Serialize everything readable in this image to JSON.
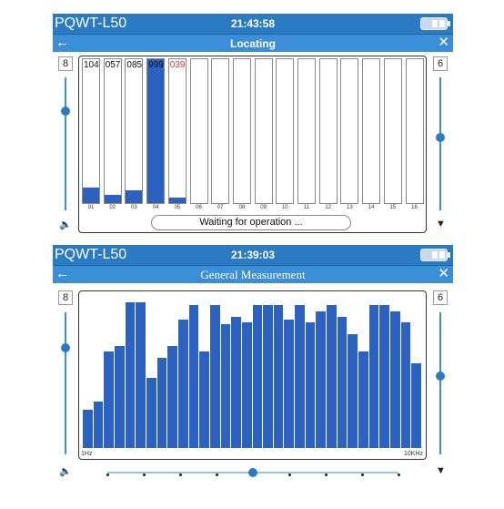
{
  "panel1": {
    "device": "PQWT-L50",
    "time": "21:43:58",
    "title": "Locating",
    "left_gain": "8",
    "right_gain": "6",
    "status_message": "Waiting for operation ...",
    "channels": [
      {
        "label": "01",
        "reading": "104",
        "level": 0.11,
        "reading_color": "#111111"
      },
      {
        "label": "02",
        "reading": "057",
        "level": 0.06,
        "reading_color": "#111111"
      },
      {
        "label": "03",
        "reading": "085",
        "level": 0.09,
        "reading_color": "#111111"
      },
      {
        "label": "04",
        "reading": "999",
        "level": 1.0,
        "reading_color": "#111111"
      },
      {
        "label": "05",
        "reading": "039",
        "level": 0.04,
        "reading_color": "#e03030"
      },
      {
        "label": "06",
        "reading": "",
        "level": 0
      },
      {
        "label": "07",
        "reading": "",
        "level": 0
      },
      {
        "label": "08",
        "reading": "",
        "level": 0
      },
      {
        "label": "09",
        "reading": "",
        "level": 0
      },
      {
        "label": "10",
        "reading": "",
        "level": 0
      },
      {
        "label": "11",
        "reading": "",
        "level": 0
      },
      {
        "label": "12",
        "reading": "",
        "level": 0
      },
      {
        "label": "13",
        "reading": "",
        "level": 0
      },
      {
        "label": "14",
        "reading": "",
        "level": 0
      },
      {
        "label": "15",
        "reading": "",
        "level": 0
      },
      {
        "label": "16",
        "reading": "",
        "level": 0
      }
    ],
    "left_slider_level": 0.75,
    "right_slider_level": 0.55
  },
  "panel2": {
    "device": "PQWT-L50",
    "time": "21:39:03",
    "title": "General Measurement",
    "left_gain": "8",
    "right_gain": "6",
    "x_min_label": "1Hz",
    "x_max_label": "10KHz",
    "spectrum_levels": [
      0.26,
      0.32,
      0.66,
      0.7,
      1.0,
      1.0,
      0.48,
      0.62,
      0.7,
      0.88,
      0.98,
      0.66,
      0.98,
      0.85,
      0.9,
      0.86,
      0.98,
      0.98,
      0.98,
      0.88,
      0.98,
      0.86,
      0.94,
      0.98,
      0.9,
      0.78,
      0.66,
      0.98,
      0.98,
      0.94,
      0.86,
      0.58
    ],
    "left_slider_level": 0.75,
    "right_slider_level": 0.55,
    "bottom_slider_level": 0.5,
    "bottom_slider_steps": 9
  },
  "colors": {
    "status_bar": "#2b7bc4",
    "title_bar": "#3b8ed8",
    "bar_fill": "#2b62c2",
    "alert_text": "#e03030"
  },
  "icons": {
    "back": "arrow-left-icon",
    "close": "close-icon",
    "battery": "battery-icon",
    "speaker": "speaker-icon",
    "filter": "filter-icon"
  }
}
